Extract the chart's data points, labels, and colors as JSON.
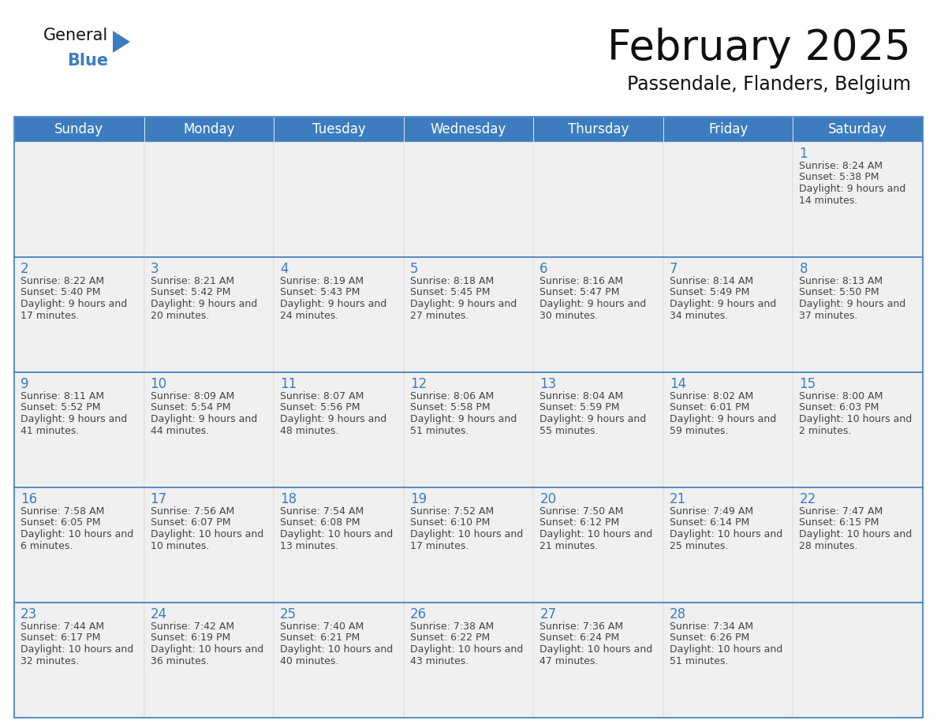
{
  "title": "February 2025",
  "subtitle": "Passendale, Flanders, Belgium",
  "header_color": "#3d7dbf",
  "header_text_color": "#ffffff",
  "cell_bg_color": "#f0f0f0",
  "cell_border_color": "#3d7dbf",
  "row_divider_color": "#3d7dbf",
  "day_number_color": "#3d7dbf",
  "cell_text_color": "#444444",
  "days_of_week": [
    "Sunday",
    "Monday",
    "Tuesday",
    "Wednesday",
    "Thursday",
    "Friday",
    "Saturday"
  ],
  "weeks": [
    [
      {
        "day": null,
        "sunrise": null,
        "sunset": null,
        "daylight": null
      },
      {
        "day": null,
        "sunrise": null,
        "sunset": null,
        "daylight": null
      },
      {
        "day": null,
        "sunrise": null,
        "sunset": null,
        "daylight": null
      },
      {
        "day": null,
        "sunrise": null,
        "sunset": null,
        "daylight": null
      },
      {
        "day": null,
        "sunrise": null,
        "sunset": null,
        "daylight": null
      },
      {
        "day": null,
        "sunrise": null,
        "sunset": null,
        "daylight": null
      },
      {
        "day": 1,
        "sunrise": "8:24 AM",
        "sunset": "5:38 PM",
        "daylight": "9 hours and 14 minutes."
      }
    ],
    [
      {
        "day": 2,
        "sunrise": "8:22 AM",
        "sunset": "5:40 PM",
        "daylight": "9 hours and 17 minutes."
      },
      {
        "day": 3,
        "sunrise": "8:21 AM",
        "sunset": "5:42 PM",
        "daylight": "9 hours and 20 minutes."
      },
      {
        "day": 4,
        "sunrise": "8:19 AM",
        "sunset": "5:43 PM",
        "daylight": "9 hours and 24 minutes."
      },
      {
        "day": 5,
        "sunrise": "8:18 AM",
        "sunset": "5:45 PM",
        "daylight": "9 hours and 27 minutes."
      },
      {
        "day": 6,
        "sunrise": "8:16 AM",
        "sunset": "5:47 PM",
        "daylight": "9 hours and 30 minutes."
      },
      {
        "day": 7,
        "sunrise": "8:14 AM",
        "sunset": "5:49 PM",
        "daylight": "9 hours and 34 minutes."
      },
      {
        "day": 8,
        "sunrise": "8:13 AM",
        "sunset": "5:50 PM",
        "daylight": "9 hours and 37 minutes."
      }
    ],
    [
      {
        "day": 9,
        "sunrise": "8:11 AM",
        "sunset": "5:52 PM",
        "daylight": "9 hours and 41 minutes."
      },
      {
        "day": 10,
        "sunrise": "8:09 AM",
        "sunset": "5:54 PM",
        "daylight": "9 hours and 44 minutes."
      },
      {
        "day": 11,
        "sunrise": "8:07 AM",
        "sunset": "5:56 PM",
        "daylight": "9 hours and 48 minutes."
      },
      {
        "day": 12,
        "sunrise": "8:06 AM",
        "sunset": "5:58 PM",
        "daylight": "9 hours and 51 minutes."
      },
      {
        "day": 13,
        "sunrise": "8:04 AM",
        "sunset": "5:59 PM",
        "daylight": "9 hours and 55 minutes."
      },
      {
        "day": 14,
        "sunrise": "8:02 AM",
        "sunset": "6:01 PM",
        "daylight": "9 hours and 59 minutes."
      },
      {
        "day": 15,
        "sunrise": "8:00 AM",
        "sunset": "6:03 PM",
        "daylight": "10 hours and 2 minutes."
      }
    ],
    [
      {
        "day": 16,
        "sunrise": "7:58 AM",
        "sunset": "6:05 PM",
        "daylight": "10 hours and 6 minutes."
      },
      {
        "day": 17,
        "sunrise": "7:56 AM",
        "sunset": "6:07 PM",
        "daylight": "10 hours and 10 minutes."
      },
      {
        "day": 18,
        "sunrise": "7:54 AM",
        "sunset": "6:08 PM",
        "daylight": "10 hours and 13 minutes."
      },
      {
        "day": 19,
        "sunrise": "7:52 AM",
        "sunset": "6:10 PM",
        "daylight": "10 hours and 17 minutes."
      },
      {
        "day": 20,
        "sunrise": "7:50 AM",
        "sunset": "6:12 PM",
        "daylight": "10 hours and 21 minutes."
      },
      {
        "day": 21,
        "sunrise": "7:49 AM",
        "sunset": "6:14 PM",
        "daylight": "10 hours and 25 minutes."
      },
      {
        "day": 22,
        "sunrise": "7:47 AM",
        "sunset": "6:15 PM",
        "daylight": "10 hours and 28 minutes."
      }
    ],
    [
      {
        "day": 23,
        "sunrise": "7:44 AM",
        "sunset": "6:17 PM",
        "daylight": "10 hours and 32 minutes."
      },
      {
        "day": 24,
        "sunrise": "7:42 AM",
        "sunset": "6:19 PM",
        "daylight": "10 hours and 36 minutes."
      },
      {
        "day": 25,
        "sunrise": "7:40 AM",
        "sunset": "6:21 PM",
        "daylight": "10 hours and 40 minutes."
      },
      {
        "day": 26,
        "sunrise": "7:38 AM",
        "sunset": "6:22 PM",
        "daylight": "10 hours and 43 minutes."
      },
      {
        "day": 27,
        "sunrise": "7:36 AM",
        "sunset": "6:24 PM",
        "daylight": "10 hours and 47 minutes."
      },
      {
        "day": 28,
        "sunrise": "7:34 AM",
        "sunset": "6:26 PM",
        "daylight": "10 hours and 51 minutes."
      },
      {
        "day": null,
        "sunrise": null,
        "sunset": null,
        "daylight": null
      }
    ]
  ],
  "logo_triangle_color": "#3d7dbf",
  "title_fontsize": 38,
  "subtitle_fontsize": 17,
  "header_fontsize": 12,
  "day_number_fontsize": 12,
  "cell_text_fontsize": 9
}
